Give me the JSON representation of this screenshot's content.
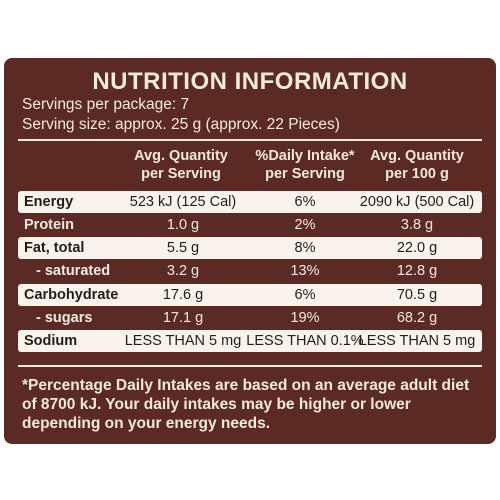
{
  "title": "NUTRITION INFORMATION",
  "servings_per_package": "Servings per package: 7",
  "serving_size": "Serving size: approx. 25 g (approx. 22 Pieces)",
  "columns": {
    "per_serving": [
      "Avg. Quantity",
      "per Serving"
    ],
    "daily_intake": [
      "%Daily Intake*",
      "per Serving"
    ],
    "per_100g": [
      "Avg. Quantity",
      "per 100 g"
    ]
  },
  "rows": [
    {
      "label": "Energy",
      "per_serving": "523 kJ (125 Cal)",
      "daily_intake": "6%",
      "per_100g": "2090 kJ (500 Cal)"
    },
    {
      "label": "Protein",
      "per_serving": "1.0 g",
      "daily_intake": "2%",
      "per_100g": "3.8 g"
    },
    {
      "label": "Fat, total",
      "per_serving": "5.5 g",
      "daily_intake": "8%",
      "per_100g": "22.0 g"
    },
    {
      "label": "- saturated",
      "per_serving": "3.2 g",
      "daily_intake": "13%",
      "per_100g": "12.8 g"
    },
    {
      "label": "Carbohydrate",
      "per_serving": "17.6 g",
      "daily_intake": "6%",
      "per_100g": "70.5 g"
    },
    {
      "label": "- sugars",
      "per_serving": "17.1 g",
      "daily_intake": "19%",
      "per_100g": "68.2 g"
    },
    {
      "label": "Sodium",
      "per_serving": "LESS THAN 5 mg",
      "daily_intake": "LESS THAN 0.1%",
      "per_100g": "LESS THAN 5 mg"
    }
  ],
  "footnote": "*Percentage Daily Intakes are based on an average adult diet of 8700 kJ. Your daily intakes may be higher or lower depending on your energy needs.",
  "colors": {
    "background": "#5b2a24",
    "band": "#f8f3ed",
    "text_light": "#f4eadf",
    "text_dark": "#2a1a14"
  }
}
